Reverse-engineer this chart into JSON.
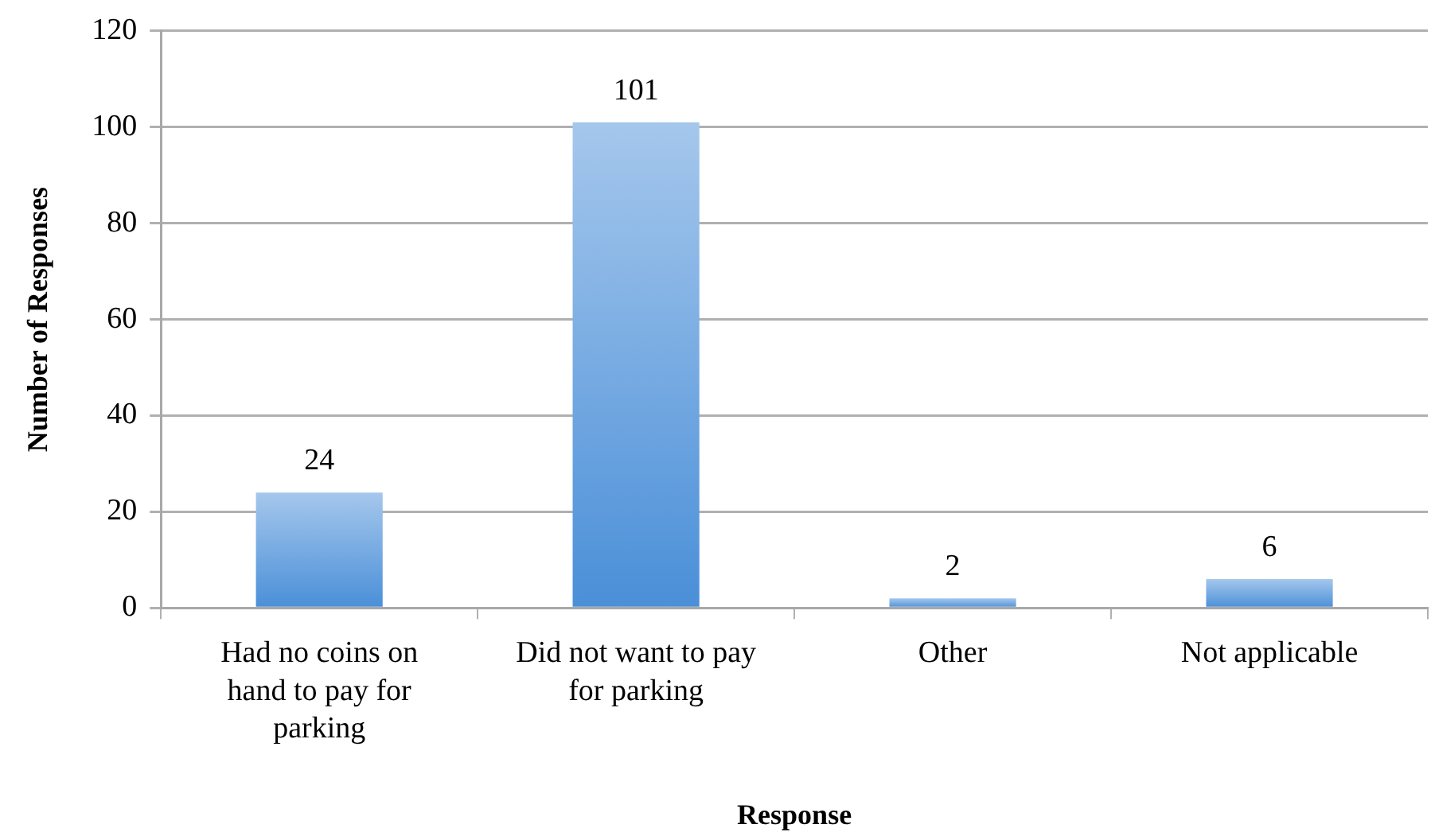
{
  "chart_data": {
    "type": "bar",
    "xlabel": "Response",
    "ylabel": "Number of Responses",
    "categories": [
      "Had no coins on hand to pay for parking",
      "Did not want to pay for parking",
      "Other",
      "Not applicable"
    ],
    "values": [
      24,
      101,
      2,
      6
    ],
    "color": "#4a8fd8",
    "ylim": [
      0,
      120
    ],
    "yticks": [
      0,
      20,
      40,
      60,
      80,
      100,
      120
    ],
    "grid": "y",
    "data_labels": true
  }
}
